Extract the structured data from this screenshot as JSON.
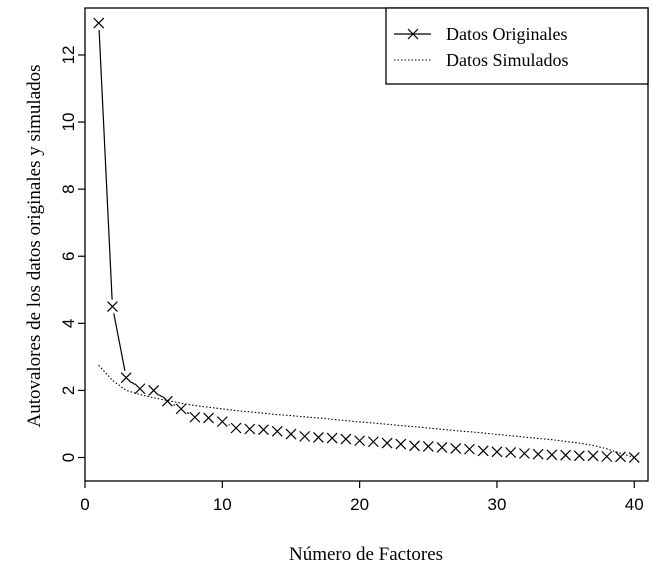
{
  "chart_data": {
    "type": "line",
    "xlabel": "Número de Factores",
    "ylabel": "Autovalores de los datos originales y simulados",
    "xlim": [
      0,
      41
    ],
    "ylim": [
      -0.7,
      13.4
    ],
    "xticks": [
      0,
      10,
      20,
      30,
      40
    ],
    "yticks": [
      0,
      2,
      4,
      6,
      8,
      10,
      12
    ],
    "grid": false,
    "legend_position": "top-right",
    "series": [
      {
        "name": "Datos Originales",
        "style": "solid-line-with-x-markers",
        "color": "#000000",
        "x": [
          1,
          2,
          3,
          4,
          5,
          6,
          7,
          8,
          9,
          10,
          11,
          12,
          13,
          14,
          15,
          16,
          17,
          18,
          19,
          20,
          21,
          22,
          23,
          24,
          25,
          26,
          27,
          28,
          29,
          30,
          31,
          32,
          33,
          34,
          35,
          36,
          37,
          38,
          39,
          40
        ],
        "values": [
          12.95,
          4.5,
          2.38,
          2.05,
          2.0,
          1.68,
          1.45,
          1.2,
          1.18,
          1.07,
          0.88,
          0.85,
          0.83,
          0.78,
          0.7,
          0.63,
          0.6,
          0.58,
          0.55,
          0.5,
          0.47,
          0.43,
          0.4,
          0.35,
          0.33,
          0.3,
          0.27,
          0.25,
          0.2,
          0.17,
          0.15,
          0.12,
          0.1,
          0.08,
          0.07,
          0.05,
          0.05,
          0.03,
          0.02,
          0.0
        ]
      },
      {
        "name": "Datos Simulados",
        "style": "dotted-line",
        "color": "#000000",
        "x": [
          1,
          2,
          3,
          4,
          5,
          6,
          7,
          8,
          9,
          10,
          11,
          12,
          13,
          14,
          15,
          16,
          17,
          18,
          19,
          20,
          21,
          22,
          23,
          24,
          25,
          26,
          27,
          28,
          29,
          30,
          31,
          32,
          33,
          34,
          35,
          36,
          37,
          38,
          39,
          40
        ],
        "values": [
          2.75,
          2.3,
          2.0,
          1.88,
          1.78,
          1.7,
          1.62,
          1.55,
          1.5,
          1.45,
          1.4,
          1.36,
          1.32,
          1.28,
          1.25,
          1.21,
          1.18,
          1.14,
          1.1,
          1.06,
          1.03,
          0.99,
          0.95,
          0.92,
          0.88,
          0.84,
          0.8,
          0.77,
          0.73,
          0.69,
          0.65,
          0.61,
          0.57,
          0.53,
          0.48,
          0.43,
          0.36,
          0.26,
          0.13,
          0.0
        ]
      }
    ]
  }
}
